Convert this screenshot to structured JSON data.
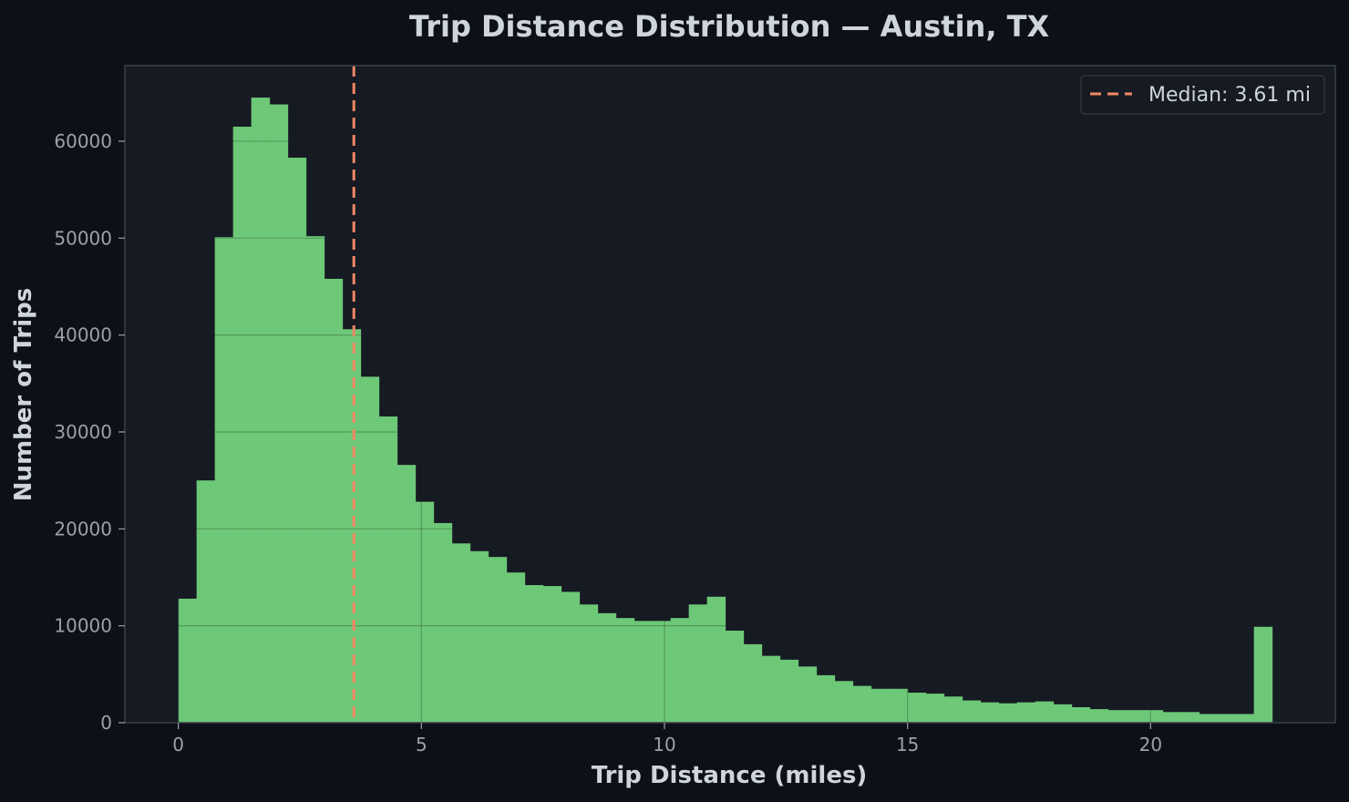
{
  "chart_data": {
    "type": "bar",
    "title": "Trip Distance Distribution — Austin, TX",
    "xlabel": "Trip Distance (miles)",
    "ylabel": "Number of Trips",
    "xlim": [
      -1.1,
      23.8
    ],
    "ylim": [
      0,
      67800
    ],
    "xticks": [
      0,
      5,
      10,
      15,
      20
    ],
    "yticks": [
      0,
      10000,
      20000,
      30000,
      40000,
      50000,
      60000
    ],
    "grid": true,
    "legend_position": "top-right",
    "bin_start": 0,
    "bin_width": 0.375,
    "values": [
      12800,
      25000,
      50100,
      61500,
      64500,
      63800,
      58300,
      50200,
      45800,
      40600,
      35700,
      31600,
      26600,
      22800,
      20600,
      18500,
      17700,
      17100,
      15500,
      14200,
      14100,
      13500,
      12200,
      11300,
      10800,
      10500,
      10500,
      10800,
      12200,
      13000,
      9500,
      8100,
      6900,
      6500,
      5800,
      4900,
      4300,
      3800,
      3500,
      3500,
      3100,
      3000,
      2700,
      2300,
      2100,
      2000,
      2100,
      2200,
      1900,
      1600,
      1400,
      1300,
      1300,
      1300,
      1100,
      1100,
      900,
      900,
      900,
      9900
    ],
    "median": {
      "value": 3.61,
      "label": "Median: 3.61 mi"
    },
    "colors": {
      "bar": "#6dc877",
      "median_line": "#f28864",
      "plot_bg": "#161a22",
      "page_bg": "#0d1017",
      "text": "#cfd5dd",
      "tick_text": "#9aa1ab",
      "grid": "#2a3038"
    }
  }
}
